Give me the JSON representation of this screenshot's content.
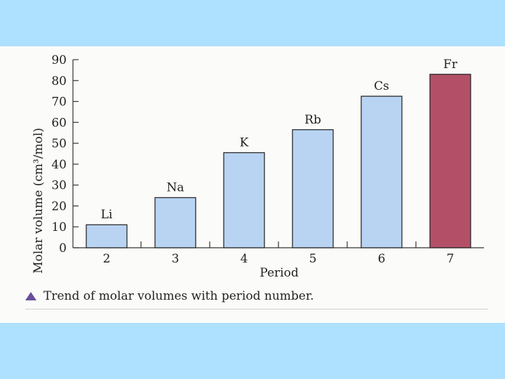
{
  "colors": {
    "background": "#aee0ff",
    "bar_default": "#b9d4f3",
    "bar_highlight": "#b35068",
    "bar_stroke": "#2a2a2a"
  },
  "caption": {
    "text": "Trend of molar volumes with period number.",
    "marker_icon": "triangle-icon"
  },
  "chart_data": {
    "type": "bar",
    "categories": [
      "2",
      "3",
      "4",
      "5",
      "6",
      "7"
    ],
    "bar_labels": [
      "Li",
      "Na",
      "K",
      "Rb",
      "Cs",
      "Fr"
    ],
    "values": [
      11,
      24,
      45.5,
      56.5,
      72.5,
      83
    ],
    "highlight_index": 5,
    "xlabel": "Period",
    "ylabel": "Molar volume (cm³/mol)",
    "ylim": [
      0,
      90
    ],
    "yticks": [
      0,
      10,
      20,
      30,
      40,
      50,
      60,
      70,
      80,
      90
    ],
    "grid": false
  }
}
